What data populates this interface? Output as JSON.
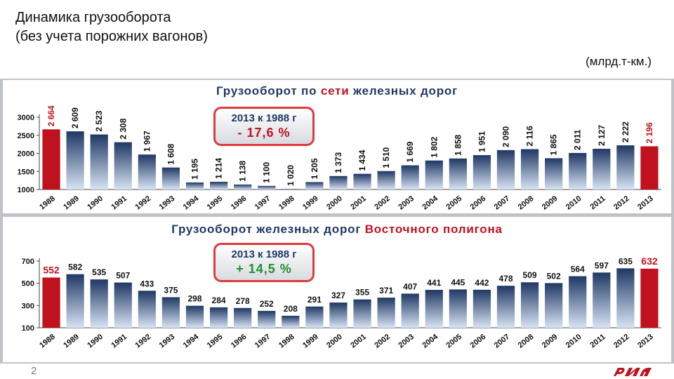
{
  "header": {
    "title": "Динамика грузооборота\n(без учета порожних вагонов)",
    "unit": "(млрд.т-км.)"
  },
  "page_number": "2",
  "colors": {
    "accent": "#c0111f",
    "bar_gradient_top": "#1f3864",
    "bar_gradient_bottom": "#d7e3f4",
    "navy": "#1f3864",
    "green": "#1f8f2e"
  },
  "chart_data": [
    {
      "type": "bar",
      "title_parts": [
        "Грузооборот по ",
        "сети",
        " железных дорог"
      ],
      "categories": [
        "1988",
        "1989",
        "1990",
        "1991",
        "1992",
        "1993",
        "1994",
        "1995",
        "1996",
        "1997",
        "1998",
        "1999",
        "2000",
        "2001",
        "2002",
        "2003",
        "2004",
        "2005",
        "2006",
        "2007",
        "2008",
        "2009",
        "2010",
        "2011",
        "2012",
        "2013"
      ],
      "values": [
        2664,
        2609,
        2523,
        2308,
        1967,
        1608,
        1195,
        1214,
        1138,
        1100,
        1020,
        1205,
        1373,
        1434,
        1510,
        1669,
        1802,
        1858,
        1951,
        2090,
        2116,
        1865,
        2011,
        2127,
        2222,
        2196
      ],
      "data_labels": [
        "2 664",
        "2 609",
        "2 523",
        "2 308",
        "1 967",
        "1 608",
        "1 195",
        "1 214",
        "1 138",
        "1 100",
        "1 020",
        "1 205",
        "1 373",
        "1 434",
        "1 510",
        "1 669",
        "1 802",
        "1 858",
        "1 951",
        "2 090",
        "2 116",
        "1 865",
        "2 011",
        "2 127",
        "2 222",
        "2 196"
      ],
      "highlight_indices": [
        0,
        25
      ],
      "ylim": [
        1000,
        3000
      ],
      "yticks": [
        "1000",
        "1500",
        "2000",
        "2500",
        "3000"
      ],
      "ytick_values": [
        1000,
        1500,
        2000,
        2500,
        3000
      ],
      "grid": false,
      "badge": {
        "line1": "2013 к 1988 г",
        "line2": "- 17,6 %"
      }
    },
    {
      "type": "bar",
      "title_parts": [
        "Грузооборот железных дорог ",
        "Восточного полигона",
        ""
      ],
      "categories": [
        "1988",
        "1989",
        "1990",
        "1991",
        "1992",
        "1993",
        "1994",
        "1995",
        "1996",
        "1997",
        "1998",
        "1999",
        "2000",
        "2001",
        "2002",
        "2003",
        "2004",
        "2005",
        "2006",
        "2007",
        "2008",
        "2009",
        "2010",
        "2011",
        "2012",
        "2013"
      ],
      "values": [
        552,
        582,
        535,
        507,
        433,
        375,
        298,
        284,
        278,
        252,
        208,
        291,
        327,
        355,
        371,
        407,
        441,
        445,
        442,
        478,
        509,
        502,
        564,
        597,
        635,
        632
      ],
      "data_labels": [
        "552",
        "582",
        "535",
        "507",
        "433",
        "375",
        "298",
        "284",
        "278",
        "252",
        "208",
        "291",
        "327",
        "355",
        "371",
        "407",
        "441",
        "445",
        "442",
        "478",
        "509",
        "502",
        "564",
        "597",
        "635",
        "632"
      ],
      "highlight_indices": [
        0,
        25
      ],
      "ylim": [
        100,
        700
      ],
      "yticks": [
        "100",
        "300",
        "500",
        "700"
      ],
      "ytick_values": [
        100,
        300,
        500,
        700
      ],
      "grid": false,
      "badge": {
        "line1": "2013 к 1988 г",
        "line2": "+ 14,5 %"
      }
    }
  ]
}
